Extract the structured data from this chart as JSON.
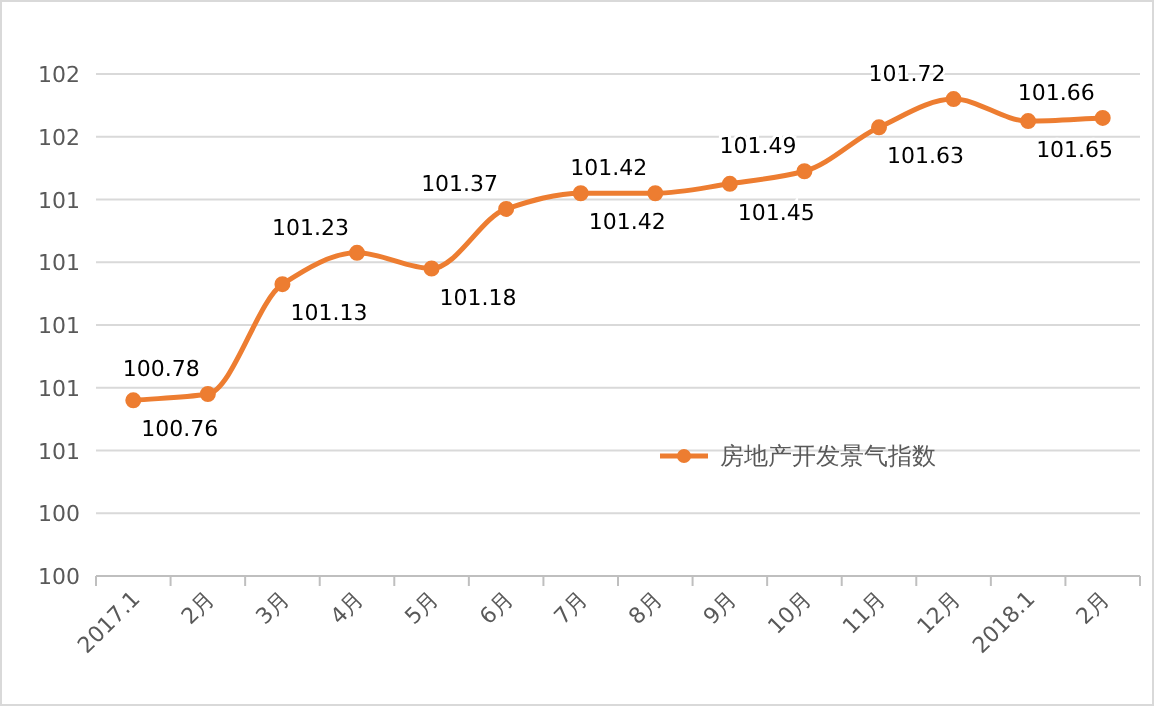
{
  "chart_data": {
    "type": "line",
    "categories": [
      "2017.1",
      "2月",
      "3月",
      "4月",
      "5月",
      "6月",
      "7月",
      "8月",
      "9月",
      "10月",
      "11月",
      "12月",
      "2018.1",
      "2月"
    ],
    "series": [
      {
        "name": "房地产开发景气指数",
        "color": "#ed7d31",
        "values": [
          100.76,
          100.78,
          101.13,
          101.23,
          101.18,
          101.37,
          101.42,
          101.42,
          101.45,
          101.49,
          101.63,
          101.72,
          101.65,
          101.66
        ]
      }
    ],
    "ylim": [
      100.2,
      101.8
    ],
    "yticks": [
      {
        "value": 100.2,
        "label": "100"
      },
      {
        "value": 100.4,
        "label": "100"
      },
      {
        "value": 100.6,
        "label": "101"
      },
      {
        "value": 100.8,
        "label": "101"
      },
      {
        "value": 101.0,
        "label": "101"
      },
      {
        "value": 101.2,
        "label": "101"
      },
      {
        "value": 101.4,
        "label": "101"
      },
      {
        "value": 101.6,
        "label": "102"
      },
      {
        "value": 101.8,
        "label": "102"
      }
    ],
    "grid": "y",
    "legend": "right",
    "marker": "circle",
    "line_style": "solid",
    "data_labels": true
  }
}
